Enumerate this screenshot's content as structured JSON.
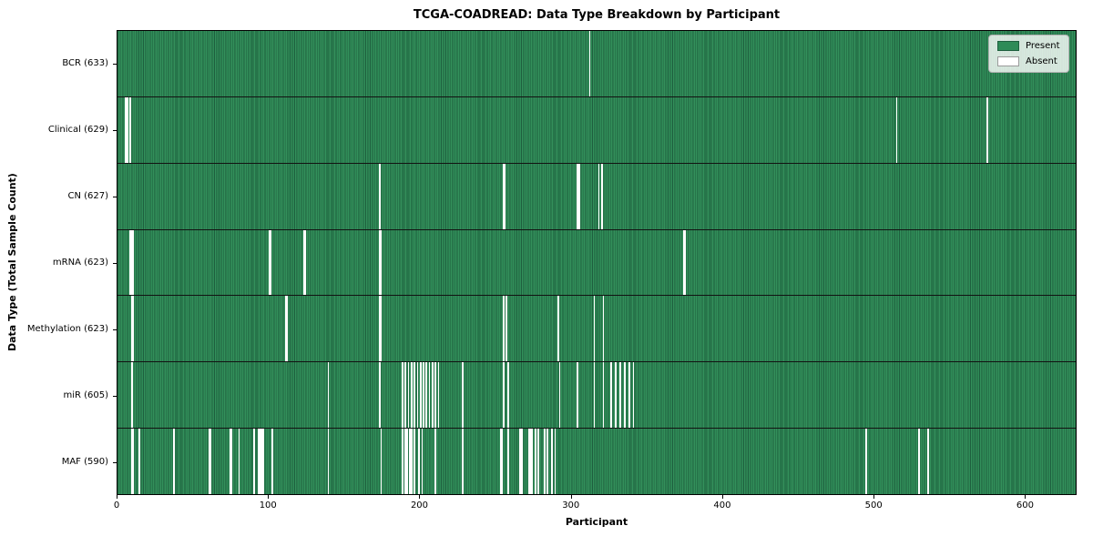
{
  "chart_data": {
    "type": "heatmap",
    "title": "TCGA-COADREAD: Data Type Breakdown by Participant",
    "xlabel": "Participant",
    "ylabel": "Data Type (Total Sample Count)",
    "n_participants": 634,
    "x_ticks": [
      0,
      100,
      200,
      300,
      400,
      500,
      600
    ],
    "grid": false,
    "legend_position": "upper right",
    "colors": {
      "present": "#2e8b57",
      "present_edge": "#1e5f3e",
      "absent": "#ffffff"
    },
    "legend": {
      "entries": [
        {
          "label": "Present",
          "color": "#2e8b57"
        },
        {
          "label": "Absent",
          "color": "#ffffff"
        }
      ]
    },
    "rows": [
      {
        "data_type": "BCR",
        "label": "BCR (633)",
        "present_count": 633,
        "absent_indices": [
          312
        ]
      },
      {
        "data_type": "Clinical",
        "label": "Clinical (629)",
        "present_count": 629,
        "absent_indices": [
          5,
          6,
          8,
          515,
          575
        ]
      },
      {
        "data_type": "CN",
        "label": "CN (627)",
        "present_count": 627,
        "absent_indices": [
          173,
          255,
          256,
          304,
          305,
          318,
          320
        ]
      },
      {
        "data_type": "mRNA",
        "label": "mRNA (623)",
        "present_count": 623,
        "absent_indices": [
          8,
          9,
          10,
          100,
          101,
          123,
          124,
          173,
          174,
          374,
          375
        ]
      },
      {
        "data_type": "Methylation",
        "label": "Methylation (623)",
        "present_count": 623,
        "absent_indices": [
          9,
          10,
          111,
          112,
          173,
          174,
          255,
          257,
          291,
          315,
          321
        ]
      },
      {
        "data_type": "miR",
        "label": "miR (605)",
        "present_count": 605,
        "absent_indices": [
          9,
          139,
          173,
          188,
          190,
          192,
          194,
          196,
          198,
          200,
          202,
          204,
          206,
          208,
          210,
          212,
          228,
          255,
          258,
          292,
          304,
          315,
          321,
          326,
          329,
          332,
          335,
          338,
          341
        ]
      },
      {
        "data_type": "MAF",
        "label": "MAF (590)",
        "present_count": 590,
        "absent_indices": [
          9,
          10,
          14,
          37,
          60,
          61,
          74,
          75,
          80,
          90,
          93,
          94,
          95,
          96,
          102,
          139,
          174,
          188,
          190,
          191,
          193,
          194,
          196,
          199,
          201,
          210,
          228,
          253,
          254,
          258,
          266,
          267,
          272,
          273,
          274,
          276,
          278,
          282,
          284,
          287,
          289,
          495,
          530,
          536
        ]
      }
    ]
  }
}
